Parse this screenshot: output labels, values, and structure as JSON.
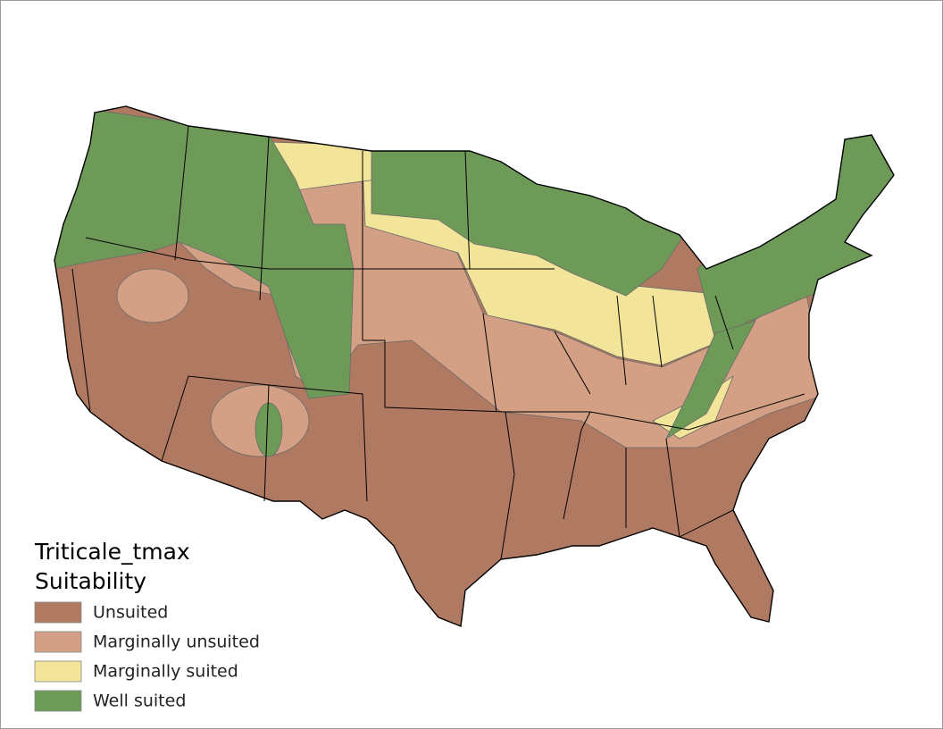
{
  "legend": {
    "title": "Triticale_tmax",
    "subtitle": "Suitability",
    "items": [
      {
        "label": "Unsuited",
        "color": "#b07a62"
      },
      {
        "label": "Marginally unsuited",
        "color": "#d4a085"
      },
      {
        "label": "Marginally suited",
        "color": "#f2e59a"
      },
      {
        "label": "Well suited",
        "color": "#6e9a58"
      }
    ]
  }
}
